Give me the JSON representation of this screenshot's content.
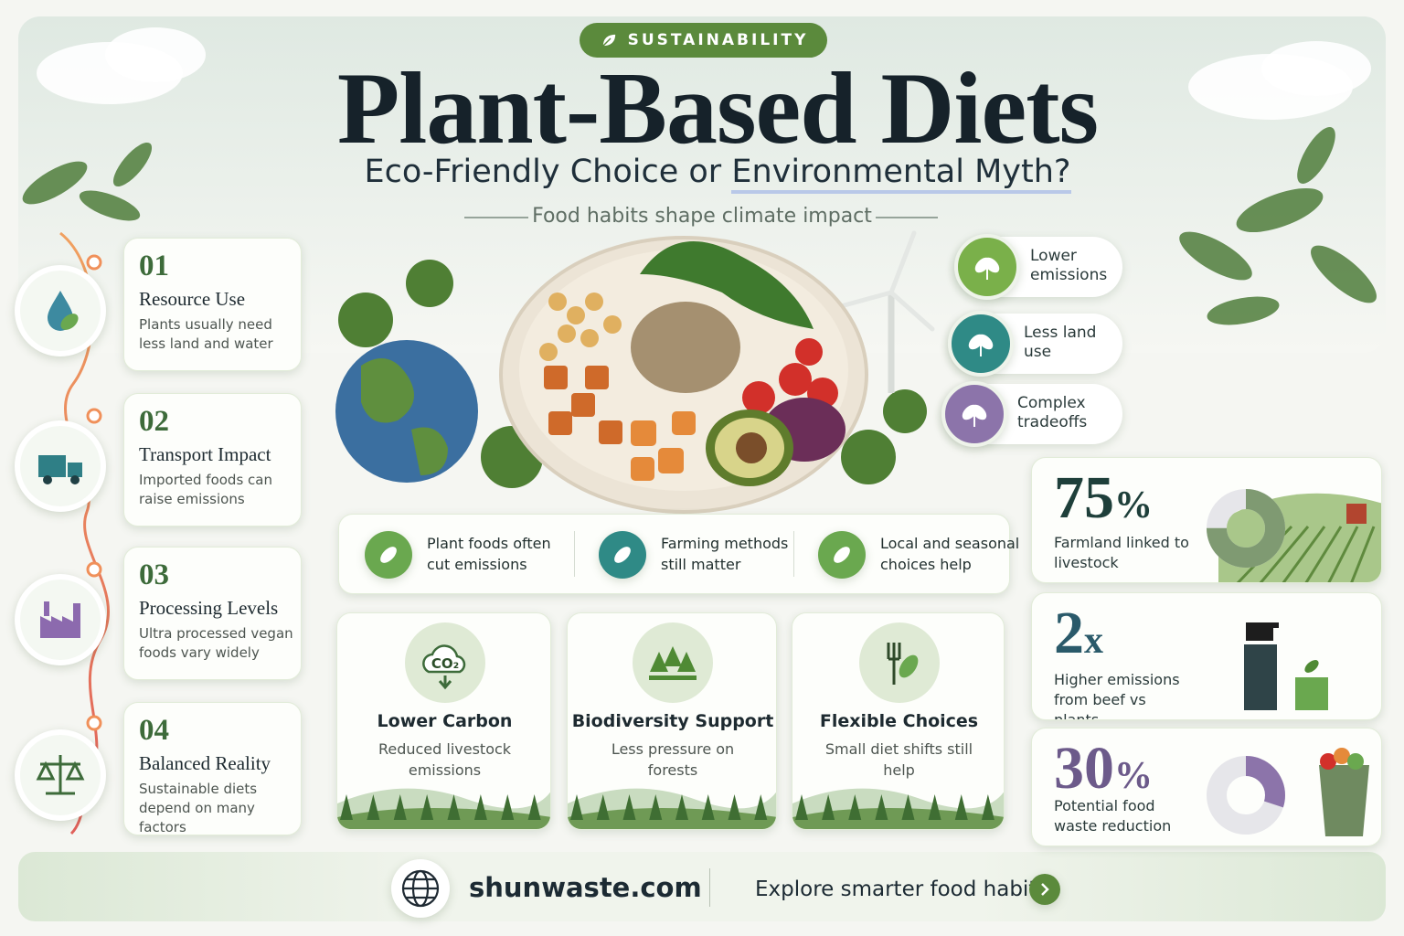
{
  "header": {
    "badge": "SUSTAINABILITY",
    "title": "Plant-Based Diets",
    "subtitle_prefix": "Eco-Friendly Choice or",
    "subtitle_highlight": "Environmental Myth?",
    "tagline": "Food habits shape climate impact"
  },
  "factors": [
    {
      "number": "01",
      "title": "Resource Use",
      "text": "Plants usually need less land and water"
    },
    {
      "number": "02",
      "title": "Transport Impact",
      "text": "Imported foods can raise emissions"
    },
    {
      "number": "03",
      "title": "Processing Levels",
      "text": "Ultra processed vegan foods vary widely"
    },
    {
      "number": "04",
      "title": "Balanced Reality",
      "text": "Sustainable diets depend on many factors"
    }
  ],
  "benefits": [
    "Lower emissions",
    "Less land use",
    "Complex tradeoffs"
  ],
  "points": [
    "Plant foods often cut emissions",
    "Farming methods still matter",
    "Local and seasonal choices help"
  ],
  "cards": [
    {
      "icon_label": "CO₂",
      "title": "Lower Carbon",
      "text": "Reduced livestock emissions"
    },
    {
      "title": "Biodiversity Support",
      "text": "Less pressure on forests"
    },
    {
      "title": "Flexible Choices",
      "text": "Small diet shifts still help"
    }
  ],
  "stats": [
    {
      "value": 75,
      "unit": "%",
      "label": "Farmland linked to livestock"
    },
    {
      "value": 2,
      "unit": "x",
      "label": "Higher emissions from beef vs plants"
    },
    {
      "value": 30,
      "unit": "%",
      "label": "Potential food waste reduction"
    }
  ],
  "footer": {
    "site": "shunwaste.com",
    "cta": "Explore smarter food habits"
  }
}
